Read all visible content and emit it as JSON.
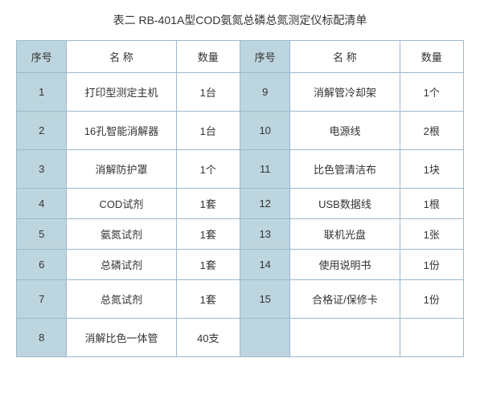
{
  "title": "表二  RB-401A型COD氨氮总磷总氮测定仪标配清单",
  "headers": {
    "num": "序号",
    "name": "名 称",
    "qty": "数量"
  },
  "colors": {
    "accent_bg": "#bdd5de",
    "border": "#9db8cc",
    "bg": "#ffffff",
    "text": "#333333"
  },
  "font_size_title": 14,
  "font_size_cell": 13,
  "rows": [
    {
      "l_num": "1",
      "l_name": "打印型测定主机",
      "l_qty": "1台",
      "r_num": "9",
      "r_name": "消解管冷却架",
      "r_qty": "1个",
      "tall": true
    },
    {
      "l_num": "2",
      "l_name": "16孔智能消解器",
      "l_qty": "1台",
      "r_num": "10",
      "r_name": "电源线",
      "r_qty": "2根",
      "tall": true
    },
    {
      "l_num": "3",
      "l_name": "消解防护罩",
      "l_qty": "1个",
      "r_num": "11",
      "r_name": "比色管清洁布",
      "r_qty": "1块",
      "tall": true
    },
    {
      "l_num": "4",
      "l_name": "COD试剂",
      "l_qty": "1套",
      "r_num": "12",
      "r_name": "USB数据线",
      "r_qty": "1根",
      "tall": false
    },
    {
      "l_num": "5",
      "l_name": "氨氮试剂",
      "l_qty": "1套",
      "r_num": "13",
      "r_name": "联机光盘",
      "r_qty": "1张",
      "tall": false
    },
    {
      "l_num": "6",
      "l_name": "总磷试剂",
      "l_qty": "1套",
      "r_num": "14",
      "r_name": "使用说明书",
      "r_qty": "1份",
      "tall": false
    },
    {
      "l_num": "7",
      "l_name": "总氮试剂",
      "l_qty": "1套",
      "r_num": "15",
      "r_name": "合格证/保修卡",
      "r_qty": "1份",
      "tall": true
    },
    {
      "l_num": "8",
      "l_name": "消解比色一体管",
      "l_qty": "40支",
      "r_num": "",
      "r_name": "",
      "r_qty": "",
      "tall": true
    }
  ]
}
